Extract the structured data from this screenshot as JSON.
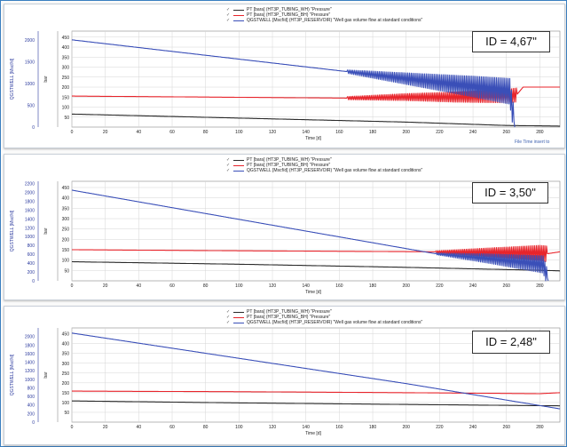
{
  "colors": {
    "wh_pressure": "#2a2a2a",
    "bh_pressure": "#e8242b",
    "gas_rate": "#3a4fb8",
    "grid": "#d6d6d6",
    "left_axis_text": "#2b3a9e"
  },
  "legend": [
    {
      "check": "✓",
      "label": "PT [bara] (HT3P_TUBING_WH) \"Pressure\""
    },
    {
      "check": "✓",
      "label": "PT [bara] (HT3P_TUBING_BH) \"Pressure\""
    },
    {
      "check": "✓",
      "label": "QGSTWELL [Mscf/d] (HT3P_RESERVOIR) \"Well gas volume flow at standard conditions\""
    }
  ],
  "panels": [
    {
      "id_label": "ID = 4,67\"",
      "outer_axis_label": "QGSTWELL [Mscf/d]",
      "inner_axis_label": "bar",
      "xlabel": "Time [d]",
      "corner_note": "File  Time  insert  to",
      "chart_data": {
        "type": "line",
        "x_ticks": [
          0,
          20,
          40,
          60,
          80,
          100,
          120,
          140,
          160,
          180,
          200,
          220,
          240,
          260,
          280
        ],
        "xlim": [
          0,
          292
        ],
        "outer_ylim": [
          0,
          2200
        ],
        "outer_ticks": [
          0,
          500,
          1000,
          1500,
          2000
        ],
        "inner_ylim": [
          0,
          480
        ],
        "inner_ticks": [
          50,
          100,
          150,
          200,
          250,
          300,
          350,
          400,
          450
        ],
        "series": [
          {
            "key": "bh_pressure",
            "axis": "inner",
            "x": [
              0,
              165,
              166,
              200,
              230,
              260,
              266,
              270,
              292
            ],
            "y": [
              155,
              145,
              145,
              150,
              150,
              155,
              160,
              200,
              200
            ],
            "oscillation": {
              "from": 165,
              "to": 266,
              "amp_start": 8,
              "amp_end": 35
            }
          },
          {
            "key": "wh_pressure",
            "axis": "inner",
            "x": [
              0,
              100,
              200,
              260,
              292
            ],
            "y": [
              65,
              45,
              25,
              8,
              5
            ]
          },
          {
            "key": "gas_rate",
            "axis": "outer",
            "x": [
              0,
              165,
              200,
              240,
              262,
              265
            ],
            "y": [
              2000,
              1270,
              1110,
              930,
              820,
              0
            ],
            "oscillation": {
              "from": 165,
              "to": 264,
              "amp_start": 40,
              "amp_end": 300
            }
          }
        ]
      }
    },
    {
      "id_label": "ID = 3,50\"",
      "outer_axis_label": "QGSTWELL [Mscf/d]",
      "inner_axis_label": "bar",
      "xlabel": "Time [d]",
      "corner_note": "",
      "chart_data": {
        "type": "line",
        "x_ticks": [
          0,
          20,
          40,
          60,
          80,
          100,
          120,
          140,
          160,
          180,
          200,
          220,
          240,
          260,
          280
        ],
        "xlim": [
          0,
          292
        ],
        "outer_ylim": [
          0,
          2250
        ],
        "outer_ticks": [
          0,
          200,
          400,
          600,
          800,
          1000,
          1200,
          1400,
          1600,
          1800,
          2000,
          2200
        ],
        "inner_ylim": [
          0,
          480
        ],
        "inner_ticks": [
          50,
          100,
          150,
          200,
          250,
          300,
          350,
          400,
          450
        ],
        "series": [
          {
            "key": "bh_pressure",
            "axis": "inner",
            "x": [
              0,
              100,
              218,
              280,
              284,
              292
            ],
            "y": [
              150,
              145,
              140,
              135,
              130,
              140
            ],
            "oscillation": {
              "from": 218,
              "to": 284,
              "amp_start": 5,
              "amp_end": 38
            }
          },
          {
            "key": "wh_pressure",
            "axis": "inner",
            "x": [
              0,
              100,
              200,
              284,
              292
            ],
            "y": [
              92,
              80,
              65,
              50,
              48
            ]
          },
          {
            "key": "gas_rate",
            "axis": "outer",
            "x": [
              0,
              218,
              250,
              282,
              285
            ],
            "y": [
              2050,
              610,
              500,
              370,
              0
            ],
            "oscillation": {
              "from": 218,
              "to": 284,
              "amp_start": 20,
              "amp_end": 200
            }
          }
        ]
      }
    },
    {
      "id_label": "ID = 2,48\"",
      "outer_axis_label": "QGSTWELL [Mscf/d]",
      "inner_axis_label": "bar",
      "xlabel": "Time [d]",
      "corner_note": "",
      "chart_data": {
        "type": "line",
        "x_ticks": [
          0,
          20,
          40,
          60,
          80,
          100,
          120,
          140,
          160,
          180,
          200,
          220,
          240,
          260,
          280
        ],
        "xlim": [
          0,
          292
        ],
        "outer_ylim": [
          0,
          2200
        ],
        "outer_ticks": [
          0,
          200,
          400,
          600,
          800,
          1000,
          1200,
          1400,
          1600,
          1800,
          2000
        ],
        "inner_ylim": [
          0,
          480
        ],
        "inner_ticks": [
          50,
          100,
          150,
          200,
          250,
          300,
          350,
          400,
          450
        ],
        "series": [
          {
            "key": "bh_pressure",
            "axis": "inner",
            "x": [
              0,
              100,
              200,
              280,
              292
            ],
            "y": [
              158,
              155,
              150,
              145,
              150
            ]
          },
          {
            "key": "wh_pressure",
            "axis": "inner",
            "x": [
              0,
              100,
              200,
              292
            ],
            "y": [
              108,
              98,
              90,
              83
            ]
          },
          {
            "key": "gas_rate",
            "axis": "outer",
            "x": [
              0,
              100,
              200,
              292
            ],
            "y": [
              2080,
              1490,
              900,
              310
            ]
          }
        ]
      }
    }
  ]
}
